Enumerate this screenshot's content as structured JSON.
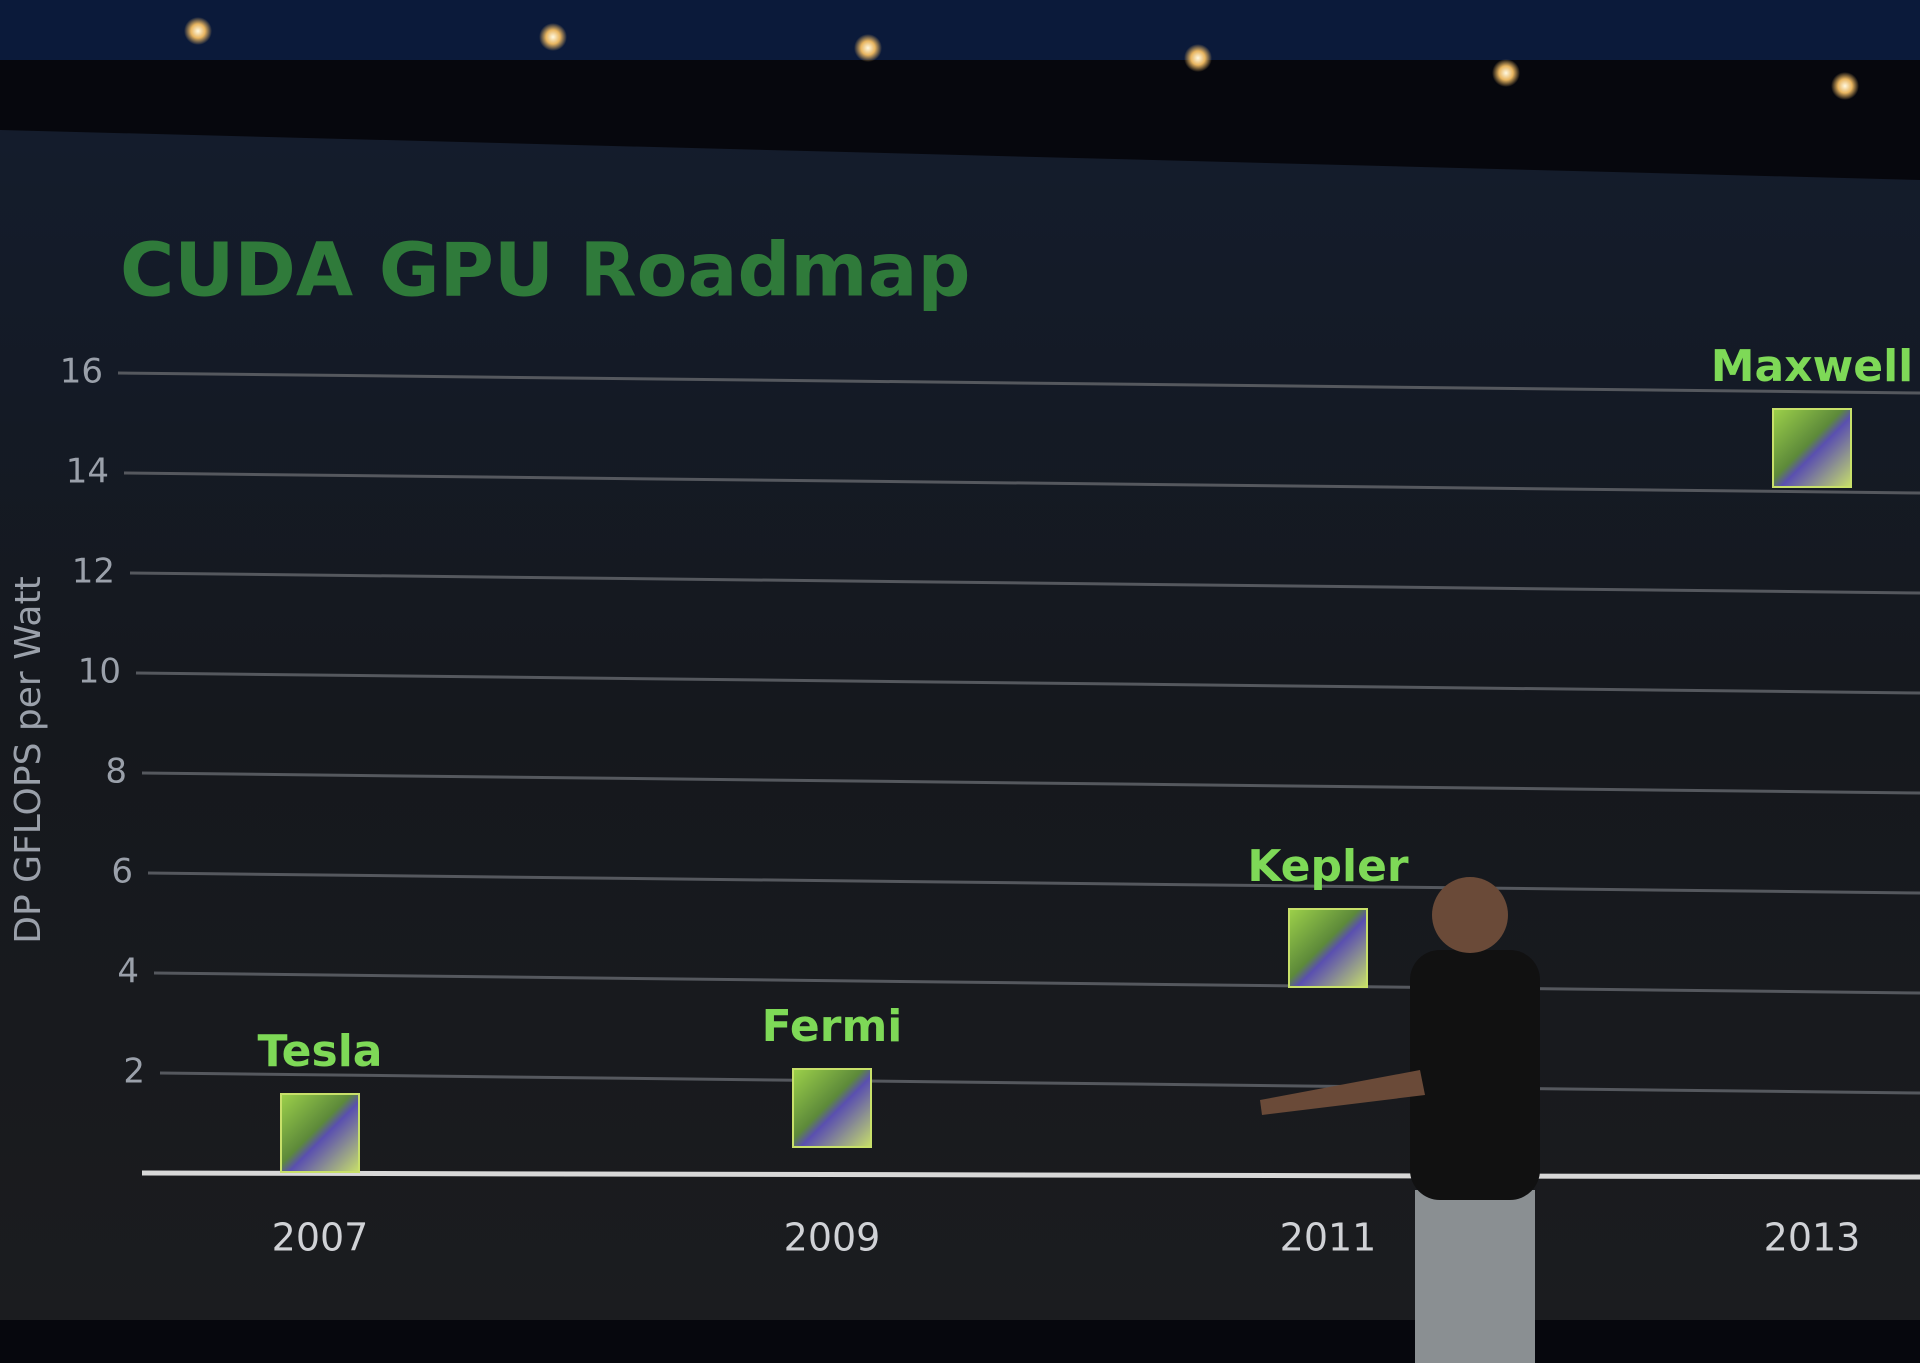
{
  "chart_data": {
    "type": "scatter",
    "title": "CUDA GPU Roadmap",
    "ylabel": "DP GFLOPS per Watt",
    "categories": [
      "2007",
      "2009",
      "2011",
      "2013"
    ],
    "labels": [
      "Tesla",
      "Fermi",
      "Kepler",
      "Maxwell"
    ],
    "values": [
      0.8,
      1.3,
      4.5,
      14.5
    ],
    "color": "#7ed957",
    "ylim": [
      0,
      16
    ],
    "yticks": [
      2,
      4,
      6,
      8,
      10,
      12,
      14,
      16
    ],
    "grid": true
  }
}
